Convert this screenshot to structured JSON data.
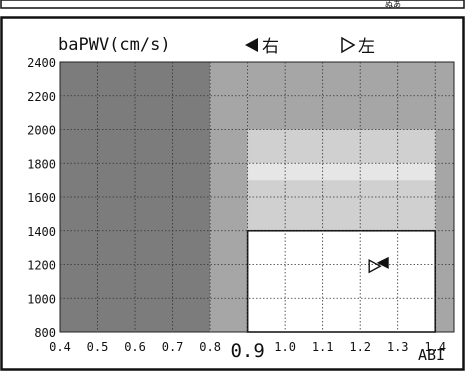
{
  "chart_data": {
    "type": "scatter",
    "title": "",
    "ylabel": "baPWV(cm/s)",
    "xlabel": "ABI",
    "xlim": [
      0.4,
      1.45
    ],
    "ylim": [
      800,
      2400
    ],
    "x_ticks": [
      "0.4",
      "0.5",
      "0.6",
      "0.7",
      "0.8",
      "0.9",
      "1.0",
      "1.1",
      "1.2",
      "1.3",
      "1.4"
    ],
    "y_ticks": [
      "800",
      "1000",
      "1200",
      "1400",
      "1600",
      "1800",
      "2000",
      "2200",
      "2400"
    ],
    "grid": true,
    "legend": [
      {
        "name": "右",
        "marker": "filled-left-triangle"
      },
      {
        "name": "左",
        "marker": "open-right-triangle"
      }
    ],
    "regions": [
      {
        "x": [
          0.4,
          0.8
        ],
        "y": [
          800,
          2400
        ],
        "shade": "dark"
      },
      {
        "x": [
          0.8,
          0.9
        ],
        "y": [
          800,
          2400
        ],
        "shade": "mid"
      },
      {
        "x": [
          0.9,
          1.45
        ],
        "y": [
          2000,
          2400
        ],
        "shade": "mid"
      },
      {
        "x": [
          1.4,
          1.45
        ],
        "y": [
          800,
          2000
        ],
        "shade": "mid"
      },
      {
        "x": [
          0.9,
          1.4
        ],
        "y": [
          1800,
          2000
        ],
        "shade": "light"
      },
      {
        "x": [
          0.9,
          1.4
        ],
        "y": [
          1700,
          1800
        ],
        "shade": "pale"
      },
      {
        "x": [
          0.9,
          1.4
        ],
        "y": [
          1400,
          1700
        ],
        "shade": "light"
      },
      {
        "x": [
          0.9,
          1.4
        ],
        "y": [
          800,
          1400
        ],
        "shade": "white"
      }
    ],
    "highlight_x_tick": "0.9",
    "series": [
      {
        "name": "右",
        "marker": "filled-left-triangle",
        "points": [
          {
            "x": 1.26,
            "y": 1210
          }
        ]
      },
      {
        "name": "左",
        "marker": "open-right-triangle",
        "points": [
          {
            "x": 1.24,
            "y": 1190
          }
        ]
      }
    ]
  },
  "colors": {
    "dark": "#7c7c7c",
    "mid": "#a6a6a6",
    "light": "#d0d0d0",
    "pale": "#e6e6e6",
    "white": "#ffffff",
    "frame": "#111111"
  },
  "top_strip": {
    "text": "ぬあ"
  }
}
